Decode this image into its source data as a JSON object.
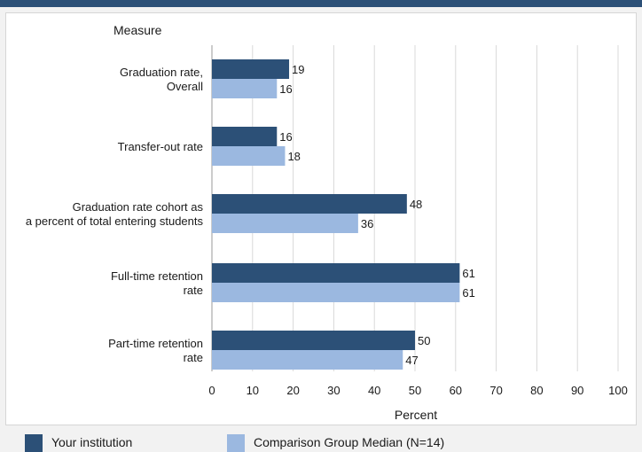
{
  "colors": {
    "accent": "#2c5077",
    "series_1": "#2c5077",
    "series_2": "#9bb8e0"
  },
  "chart_data": {
    "type": "bar",
    "orientation": "horizontal",
    "ylabel": "Measure",
    "xlabel": "Percent",
    "categories": [
      [
        "Graduation rate,",
        "Overall"
      ],
      [
        "Transfer-out rate"
      ],
      [
        "Graduation rate cohort as",
        "a percent of total entering students"
      ],
      [
        "Full-time retention",
        "rate"
      ],
      [
        "Part-time retention",
        "rate"
      ]
    ],
    "series": [
      {
        "name": "Your institution",
        "color": "#2c5077",
        "values": [
          19,
          16,
          48,
          61,
          50
        ]
      },
      {
        "name": "Comparison Group Median (N=14)",
        "color": "#9bb8e0",
        "values": [
          16,
          18,
          36,
          61,
          47
        ]
      }
    ],
    "xlim": [
      0,
      100
    ],
    "xticks": [
      0,
      10,
      20,
      30,
      40,
      50,
      60,
      70,
      80,
      90,
      100
    ],
    "grid": "vertical",
    "legend_position": "bottom"
  }
}
